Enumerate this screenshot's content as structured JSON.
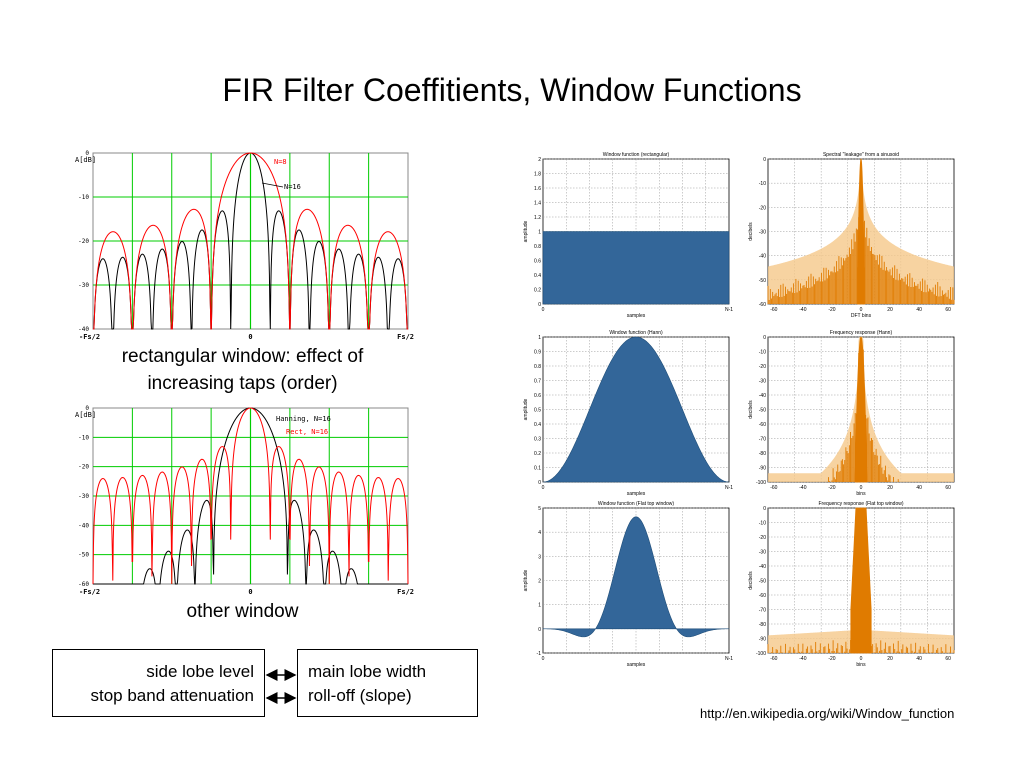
{
  "slide": {
    "title": "FIR Filter Coeffitients, Window Functions",
    "caption_top": "rectangular window: effect of increasing taps (order)",
    "caption_bottom": "other window",
    "box_left_line1": "side lobe level",
    "box_left_line2": "stop band attenuation",
    "box_right_line1": "main lobe width",
    "box_right_line2": "roll-off (slope)",
    "source_url": "http://en.wikipedia.org/wiki/Window_function"
  },
  "colors": {
    "grid_green": "#00cc00",
    "series_red": "#ff0000",
    "series_black": "#000000",
    "window_fill": "#336699",
    "spectrum_orange": "#e07b00",
    "spectrum_light": "#f5c88a"
  },
  "chart_data": [
    {
      "type": "line",
      "ylabel": "A[dB]",
      "ylim": [
        -40,
        0
      ],
      "yticks": [
        "0",
        "-10",
        "-20",
        "-30",
        "-40"
      ],
      "xticks": [
        "-Fs/2",
        "0",
        "Fs/2"
      ],
      "grid": true,
      "series": [
        {
          "name": "N=8",
          "taps": 8
        },
        {
          "name": "N=16",
          "taps": 16
        }
      ]
    },
    {
      "type": "line",
      "ylabel": "A[dB]",
      "ylim": [
        -60,
        0
      ],
      "yticks": [
        "0",
        "-10",
        "-20",
        "-30",
        "-40",
        "-50",
        "-60"
      ],
      "xticks": [
        "-Fs/2",
        "0",
        "Fs/2"
      ],
      "grid": true,
      "series": [
        {
          "name": "Hanning, N=16",
          "taps": 16
        },
        {
          "name": "Rect, N=16",
          "taps": 16
        }
      ]
    },
    {
      "type": "area",
      "title": "Window function (rectangular)",
      "xlabel": "samples",
      "ylabel": "amplitude",
      "ylim": [
        0,
        2
      ],
      "yticks": [
        "0",
        "0.2",
        "0.4",
        "0.6",
        "0.8",
        "1",
        "1.2",
        "1.4",
        "1.6",
        "1.8",
        "2"
      ],
      "xticks": [
        "0",
        "N-1"
      ],
      "window": "rectangular"
    },
    {
      "type": "bar",
      "title": "Spectral \"leakage\" from a sinusoid",
      "xlabel": "DFT bins",
      "ylabel": "decibels",
      "ylim": [
        -60,
        0
      ],
      "xlim": [
        -64,
        64
      ],
      "yticks": [
        "0",
        "-10",
        "-20",
        "-30",
        "-40",
        "-50",
        "-60"
      ],
      "xticks": [
        "-60",
        "-40",
        "-20",
        "0",
        "20",
        "40",
        "60"
      ],
      "window": "rectangular"
    },
    {
      "type": "area",
      "title": "Window function (Hann)",
      "xlabel": "samples",
      "ylabel": "amplitude",
      "ylim": [
        0,
        1
      ],
      "yticks": [
        "0",
        "0.1",
        "0.2",
        "0.3",
        "0.4",
        "0.5",
        "0.6",
        "0.7",
        "0.8",
        "0.9",
        "1"
      ],
      "xticks": [
        "0",
        "N-1"
      ],
      "window": "hann"
    },
    {
      "type": "bar",
      "title": "Frequency response (Hann)",
      "xlabel": "bins",
      "ylabel": "decibels",
      "ylim": [
        -100,
        0
      ],
      "xlim": [
        -64,
        64
      ],
      "yticks": [
        "0",
        "-10",
        "-20",
        "-30",
        "-40",
        "-50",
        "-60",
        "-70",
        "-80",
        "-90",
        "-100"
      ],
      "xticks": [
        "-60",
        "-40",
        "-20",
        "0",
        "20",
        "40",
        "60"
      ],
      "window": "hann"
    },
    {
      "type": "area",
      "title": "Window function (Flat top window)",
      "xlabel": "samples",
      "ylabel": "amplitude",
      "ylim": [
        -1,
        5
      ],
      "yticks": [
        "-1",
        "0",
        "1",
        "2",
        "3",
        "4",
        "5"
      ],
      "xticks": [
        "0",
        "N-1"
      ],
      "window": "flattop"
    },
    {
      "type": "bar",
      "title": "Frequency response (Flat top window)",
      "xlabel": "bins",
      "ylabel": "decibels",
      "ylim": [
        -100,
        0
      ],
      "xlim": [
        -64,
        64
      ],
      "yticks": [
        "0",
        "-10",
        "-20",
        "-30",
        "-40",
        "-50",
        "-60",
        "-70",
        "-80",
        "-90",
        "-100"
      ],
      "xticks": [
        "-60",
        "-40",
        "-20",
        "0",
        "20",
        "40",
        "60"
      ],
      "window": "flattop"
    }
  ]
}
